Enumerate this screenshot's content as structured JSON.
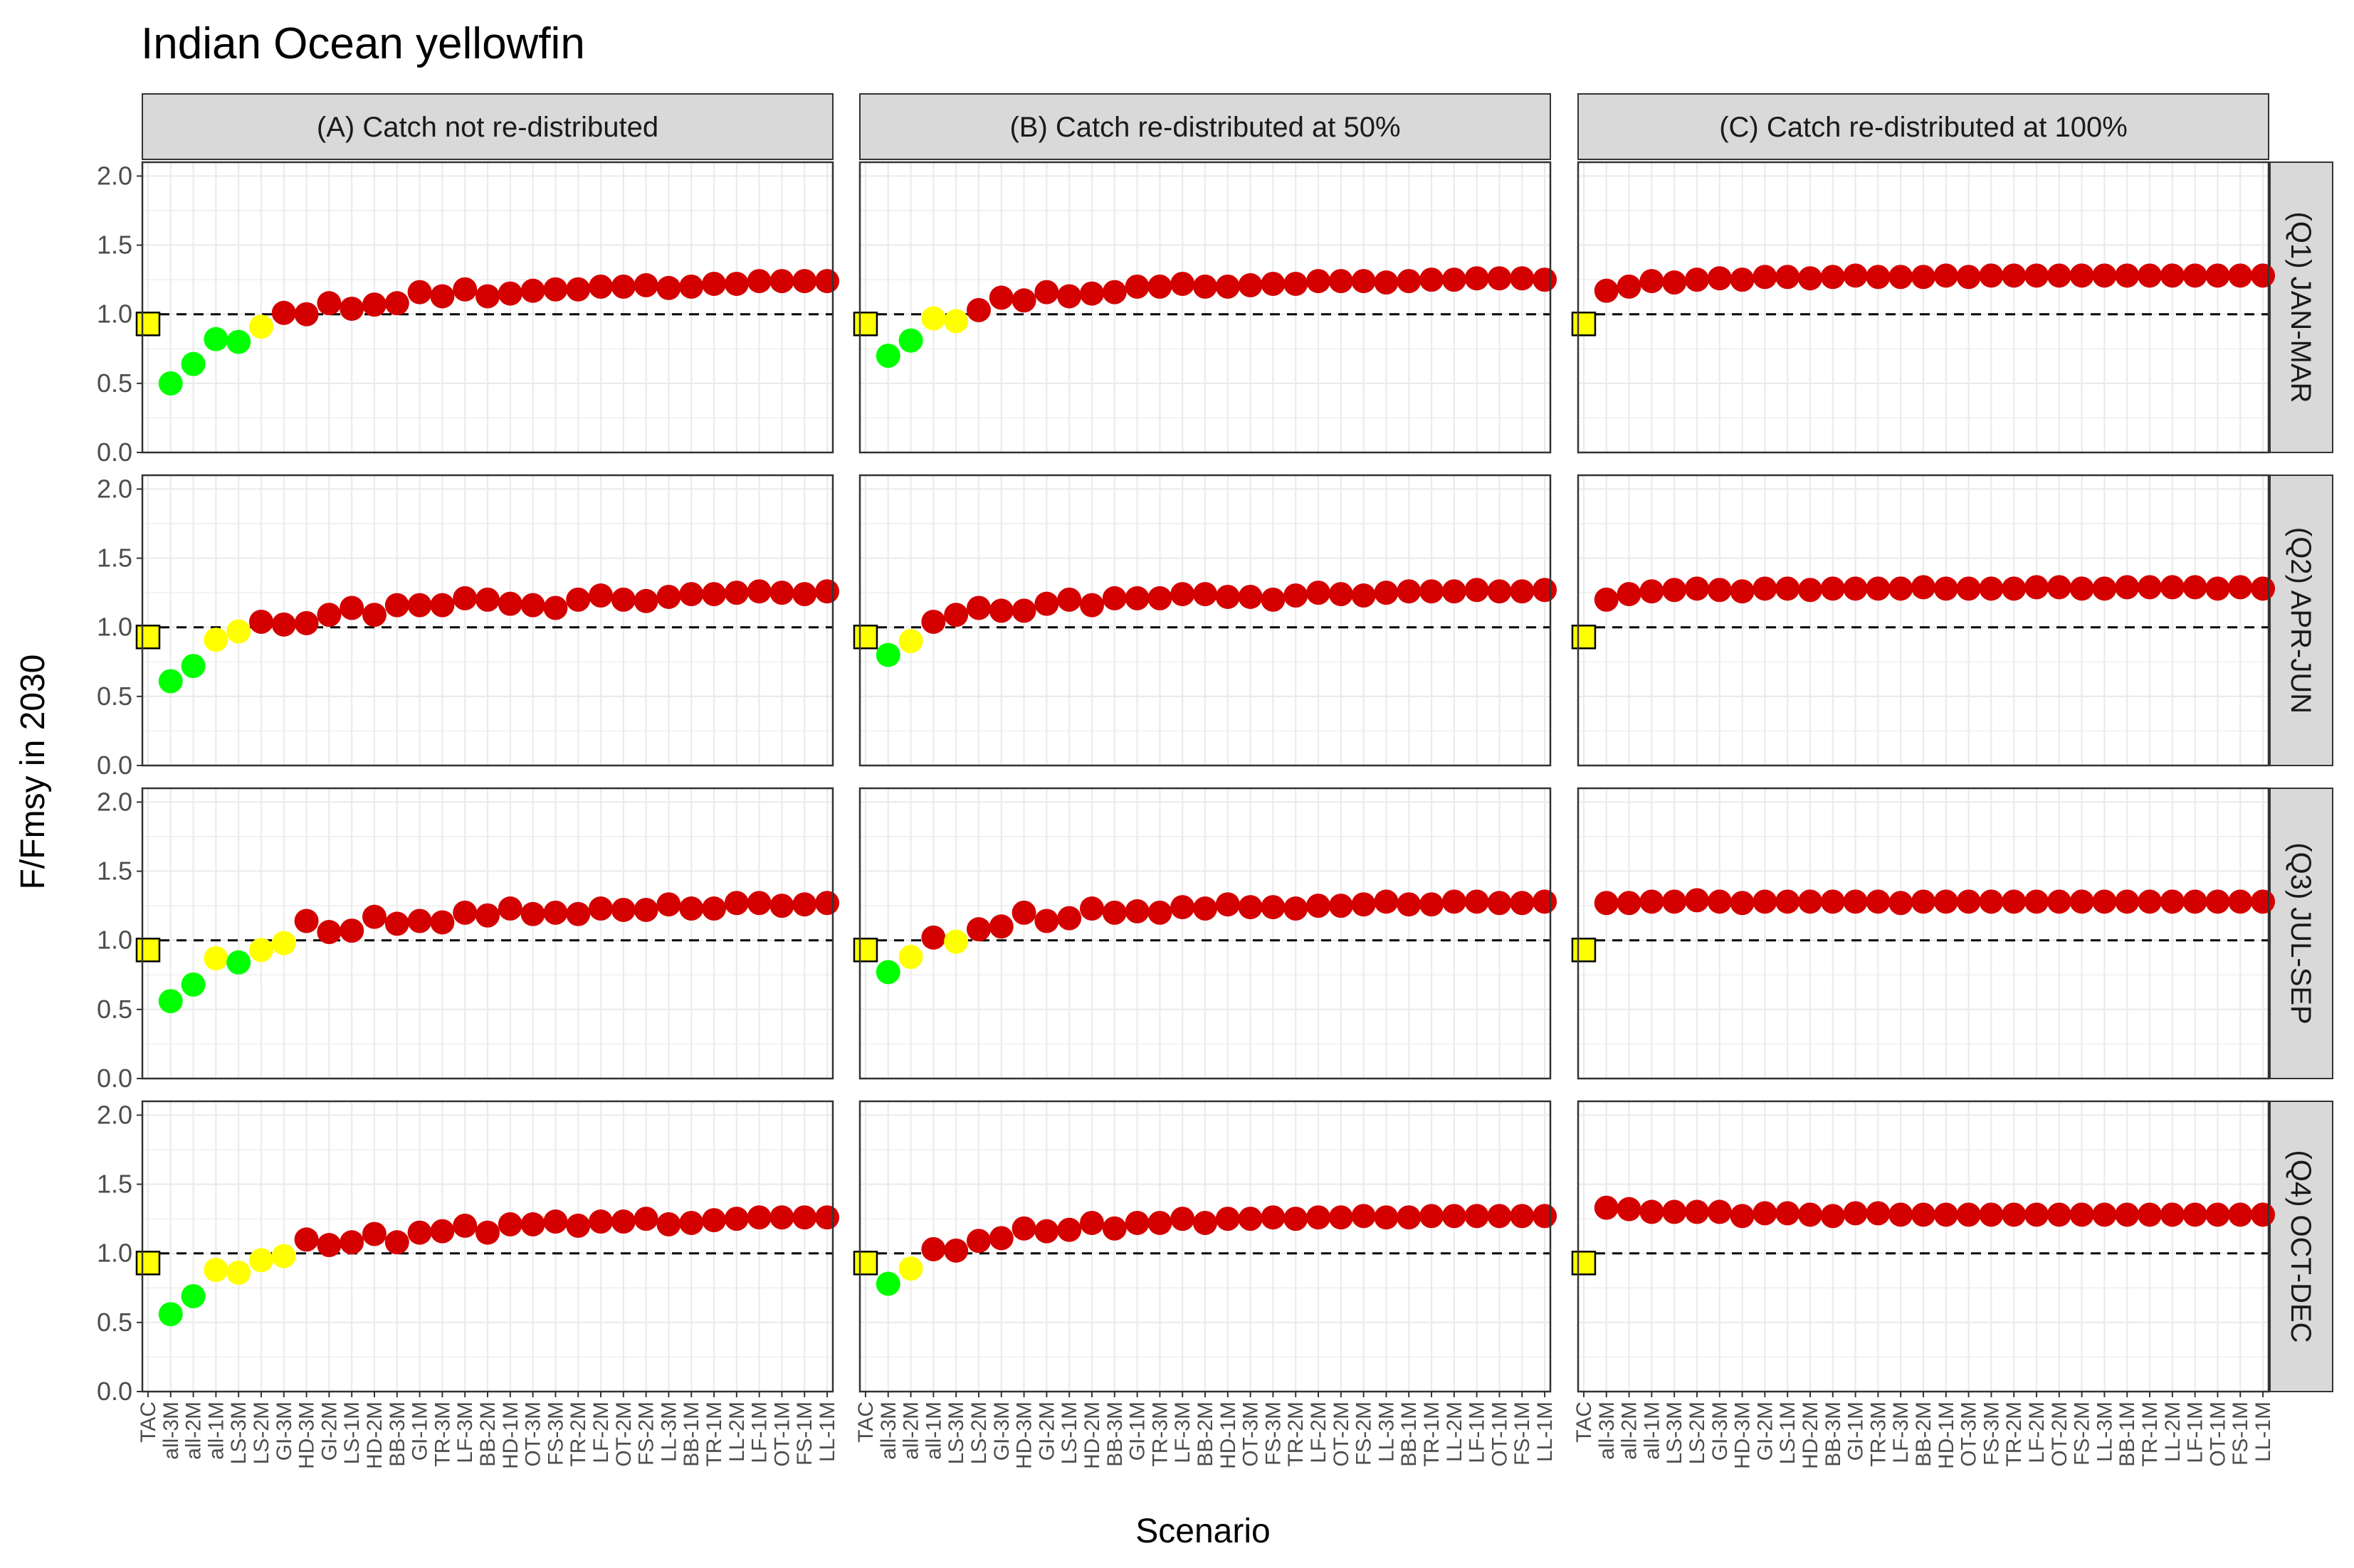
{
  "chart_data": {
    "type": "scatter",
    "title": "Indian Ocean yellowfin",
    "xlabel": "Scenario",
    "ylabel": "F/Fmsy in 2030",
    "ylim": [
      0,
      2.1
    ],
    "yticks": [
      "0.0",
      "0.5",
      "1.0",
      "1.5",
      "2.0"
    ],
    "reference_line": 1.0,
    "grid": true,
    "colors": {
      "above_1_2": "#D40000",
      "between_0_9_and_1": "#FFFF00",
      "below_0_9": "#00FF00",
      "tac_marker": "#FFFF00",
      "point_outline": "#000000",
      "strip_fill": "#D9D9D9",
      "grid": "#EBEBEB"
    },
    "columns": [
      "(A) Catch not re-distributed",
      "(B) Catch re-distributed at 50%",
      "(C) Catch re-distributed at 100%"
    ],
    "rows": [
      "(Q1) JAN-MAR",
      "(Q2) APR-JUN",
      "(Q3) JUL-SEP",
      "(Q4) OCT-DEC"
    ],
    "categories": [
      [
        "TAC",
        "all-3M",
        "all-2M",
        "all-1M",
        "LS-3M",
        "LS-2M",
        "GI-3M",
        "HD-3M",
        "GI-2M",
        "LS-1M",
        "HD-2M",
        "BB-3M",
        "GI-1M",
        "TR-3M",
        "LF-3M",
        "BB-2M",
        "HD-1M",
        "OT-3M",
        "FS-3M",
        "TR-2M",
        "LF-2M",
        "OT-2M",
        "FS-2M",
        "LL-3M",
        "BB-1M",
        "TR-1M",
        "LL-2M",
        "LF-1M",
        "OT-1M",
        "FS-1M",
        "LL-1M"
      ],
      [
        "TAC",
        "all-3M",
        "all-2M",
        "all-1M",
        "LS-3M",
        "LS-2M",
        "GI-3M",
        "HD-3M",
        "GI-2M",
        "LS-1M",
        "HD-2M",
        "BB-3M",
        "GI-1M",
        "TR-3M",
        "LF-3M",
        "BB-2M",
        "HD-1M",
        "OT-3M",
        "FS-3M",
        "TR-2M",
        "LF-2M",
        "OT-2M",
        "FS-2M",
        "LL-3M",
        "BB-1M",
        "TR-1M",
        "LL-2M",
        "LF-1M",
        "OT-1M",
        "FS-1M",
        "LL-1M"
      ],
      [
        "TAC",
        "all-3M",
        "all-2M",
        "all-1M",
        "LS-3M",
        "LS-2M",
        "GI-3M",
        "HD-3M",
        "GI-2M",
        "LS-1M",
        "HD-2M",
        "BB-3M",
        "GI-1M",
        "TR-3M",
        "LF-3M",
        "BB-2M",
        "HD-1M",
        "OT-3M",
        "FS-3M",
        "TR-2M",
        "LF-2M",
        "OT-2M",
        "FS-2M",
        "LL-3M",
        "BB-1M",
        "TR-1M",
        "LL-2M",
        "LF-1M",
        "OT-1M",
        "FS-1M",
        "LL-1M"
      ]
    ],
    "panels": [
      {
        "row": 0,
        "col": 0,
        "values": [
          0.93,
          0.5,
          0.64,
          0.82,
          0.8,
          0.91,
          1.01,
          1.0,
          1.08,
          1.04,
          1.07,
          1.08,
          1.16,
          1.13,
          1.18,
          1.13,
          1.15,
          1.17,
          1.18,
          1.18,
          1.2,
          1.2,
          1.21,
          1.19,
          1.2,
          1.22,
          1.22,
          1.24,
          1.24,
          1.24,
          1.24
        ]
      },
      {
        "row": 0,
        "col": 1,
        "values": [
          0.93,
          0.7,
          0.81,
          0.97,
          0.95,
          1.03,
          1.12,
          1.1,
          1.16,
          1.13,
          1.15,
          1.16,
          1.2,
          1.2,
          1.22,
          1.2,
          1.2,
          1.21,
          1.22,
          1.22,
          1.24,
          1.24,
          1.24,
          1.23,
          1.24,
          1.25,
          1.25,
          1.26,
          1.26,
          1.26,
          1.25
        ]
      },
      {
        "row": 0,
        "col": 2,
        "values": [
          0.93,
          1.17,
          1.2,
          1.24,
          1.23,
          1.25,
          1.26,
          1.25,
          1.27,
          1.27,
          1.26,
          1.27,
          1.28,
          1.27,
          1.27,
          1.27,
          1.28,
          1.27,
          1.28,
          1.28,
          1.28,
          1.28,
          1.28,
          1.28,
          1.28,
          1.28,
          1.28,
          1.28,
          1.28,
          1.28,
          1.28
        ]
      },
      {
        "row": 1,
        "col": 0,
        "values": [
          0.93,
          0.61,
          0.72,
          0.91,
          0.97,
          1.04,
          1.02,
          1.03,
          1.09,
          1.14,
          1.09,
          1.16,
          1.16,
          1.16,
          1.21,
          1.2,
          1.17,
          1.16,
          1.14,
          1.2,
          1.23,
          1.2,
          1.19,
          1.22,
          1.24,
          1.24,
          1.25,
          1.26,
          1.25,
          1.24,
          1.26
        ]
      },
      {
        "row": 1,
        "col": 1,
        "values": [
          0.93,
          0.8,
          0.9,
          1.04,
          1.09,
          1.14,
          1.12,
          1.12,
          1.17,
          1.2,
          1.16,
          1.21,
          1.21,
          1.21,
          1.24,
          1.24,
          1.22,
          1.22,
          1.2,
          1.23,
          1.25,
          1.24,
          1.23,
          1.25,
          1.26,
          1.26,
          1.26,
          1.27,
          1.26,
          1.26,
          1.27
        ]
      },
      {
        "row": 1,
        "col": 2,
        "values": [
          0.93,
          1.2,
          1.24,
          1.26,
          1.27,
          1.28,
          1.27,
          1.26,
          1.28,
          1.28,
          1.27,
          1.28,
          1.28,
          1.28,
          1.28,
          1.29,
          1.28,
          1.28,
          1.28,
          1.28,
          1.29,
          1.29,
          1.28,
          1.28,
          1.29,
          1.29,
          1.29,
          1.29,
          1.28,
          1.29,
          1.28
        ]
      },
      {
        "row": 2,
        "col": 0,
        "values": [
          0.93,
          0.56,
          0.68,
          0.87,
          0.84,
          0.93,
          0.98,
          1.14,
          1.06,
          1.07,
          1.17,
          1.12,
          1.14,
          1.13,
          1.2,
          1.18,
          1.23,
          1.19,
          1.2,
          1.19,
          1.23,
          1.22,
          1.22,
          1.26,
          1.23,
          1.23,
          1.27,
          1.27,
          1.25,
          1.26,
          1.27
        ]
      },
      {
        "row": 2,
        "col": 1,
        "values": [
          0.93,
          0.77,
          0.88,
          1.02,
          0.99,
          1.08,
          1.1,
          1.2,
          1.14,
          1.16,
          1.23,
          1.2,
          1.21,
          1.2,
          1.24,
          1.23,
          1.26,
          1.24,
          1.24,
          1.23,
          1.25,
          1.25,
          1.26,
          1.28,
          1.26,
          1.26,
          1.28,
          1.28,
          1.27,
          1.27,
          1.28
        ]
      },
      {
        "row": 2,
        "col": 2,
        "values": [
          0.93,
          1.27,
          1.27,
          1.28,
          1.28,
          1.29,
          1.28,
          1.27,
          1.28,
          1.28,
          1.28,
          1.28,
          1.28,
          1.28,
          1.27,
          1.28,
          1.28,
          1.28,
          1.28,
          1.28,
          1.28,
          1.28,
          1.28,
          1.28,
          1.28,
          1.28,
          1.28,
          1.28,
          1.28,
          1.28,
          1.28
        ]
      },
      {
        "row": 3,
        "col": 0,
        "values": [
          0.93,
          0.56,
          0.69,
          0.88,
          0.86,
          0.95,
          0.98,
          1.1,
          1.06,
          1.08,
          1.14,
          1.08,
          1.15,
          1.16,
          1.2,
          1.15,
          1.21,
          1.21,
          1.23,
          1.2,
          1.23,
          1.23,
          1.25,
          1.21,
          1.22,
          1.24,
          1.25,
          1.26,
          1.26,
          1.26,
          1.26
        ]
      },
      {
        "row": 3,
        "col": 1,
        "values": [
          0.93,
          0.78,
          0.89,
          1.03,
          1.02,
          1.09,
          1.11,
          1.18,
          1.16,
          1.17,
          1.22,
          1.18,
          1.22,
          1.22,
          1.25,
          1.22,
          1.25,
          1.25,
          1.26,
          1.25,
          1.26,
          1.26,
          1.27,
          1.26,
          1.26,
          1.27,
          1.27,
          1.27,
          1.27,
          1.27,
          1.27
        ]
      },
      {
        "row": 3,
        "col": 2,
        "values": [
          0.93,
          1.33,
          1.32,
          1.3,
          1.3,
          1.3,
          1.3,
          1.27,
          1.29,
          1.29,
          1.28,
          1.27,
          1.29,
          1.29,
          1.28,
          1.28,
          1.28,
          1.28,
          1.28,
          1.28,
          1.28,
          1.28,
          1.28,
          1.28,
          1.28,
          1.28,
          1.28,
          1.28,
          1.28,
          1.28,
          1.28
        ]
      }
    ]
  }
}
